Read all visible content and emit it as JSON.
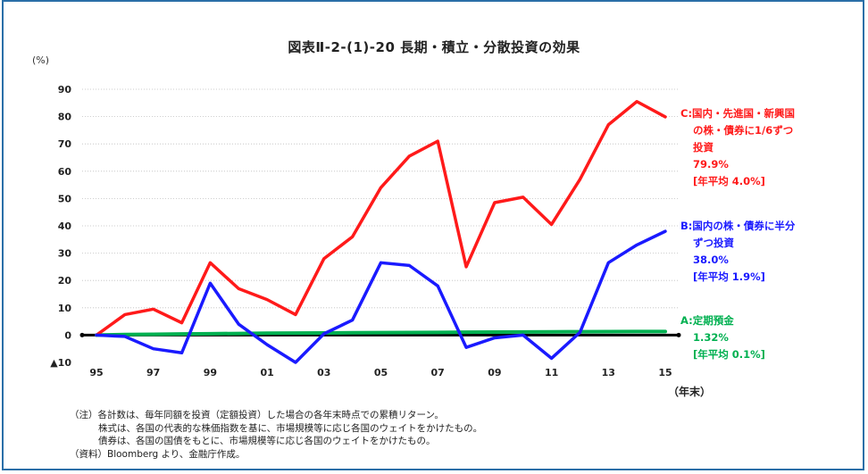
{
  "title": "図表Ⅱ-2-(1)-20  長期・積立・分散投資の効果",
  "unit_label": "(%)",
  "x_unit_label": "（年末）",
  "notes": [
    "（注）各計数は、毎年同額を投資（定額投資）した場合の各年末時点での累積リターン。",
    "株式は、各国の代表的な株価指数を基に、市場規模等に応じ各国のウェイトをかけたもの。",
    "債券は、各国の国債をもとに、市場規模等に応じ各国のウェイトをかけたもの。",
    "（資料）Bloomberg より、金融庁作成。"
  ],
  "colors": {
    "frame": "#2a6fa8",
    "red": "#ff1a1a",
    "blue": "#1a1aff",
    "green": "#00b050",
    "zero": "#000000"
  },
  "chart_data": {
    "type": "line",
    "ylim": [
      -10,
      90
    ],
    "y_ticks": [
      -10,
      0,
      10,
      20,
      30,
      40,
      50,
      60,
      70,
      80,
      90
    ],
    "y_tick_labels": [
      "▲10",
      "0",
      "10",
      "20",
      "30",
      "40",
      "50",
      "60",
      "70",
      "80",
      "90"
    ],
    "x": [
      1995,
      1996,
      1997,
      1998,
      1999,
      2000,
      2001,
      2002,
      2003,
      2004,
      2005,
      2006,
      2007,
      2008,
      2009,
      2010,
      2011,
      2012,
      2013,
      2014,
      2015
    ],
    "x_tick_positions": [
      1995,
      1997,
      1999,
      2001,
      2003,
      2005,
      2007,
      2009,
      2011,
      2013,
      2015
    ],
    "x_tick_labels": [
      "95",
      "97",
      "99",
      "01",
      "03",
      "05",
      "07",
      "09",
      "11",
      "13",
      "15"
    ],
    "grid": true,
    "series": [
      {
        "color": "#ff1a1a",
        "values": [
          0,
          7.5,
          9.5,
          4.5,
          26.5,
          17,
          13,
          7.5,
          28,
          36,
          54,
          65.5,
          71,
          25,
          48.5,
          50.5,
          40.5,
          57,
          77,
          85.5,
          79.9
        ],
        "annotation": [
          "C:国内・先進国・新興国",
          "の株・債券に1/6ずつ",
          "投資",
          "79.9%",
          "[年平均 4.0%]"
        ]
      },
      {
        "color": "#1a1aff",
        "values": [
          0,
          -0.5,
          -5,
          -6.5,
          19,
          4,
          -3.5,
          -10,
          0.5,
          5.5,
          26.5,
          25.5,
          18,
          -4.5,
          -1,
          0,
          -8.5,
          1,
          26.5,
          33,
          38.0
        ],
        "annotation": [
          "B:国内の株・債券に半分",
          "ずつ投資",
          "38.0%",
          "[年平均 1.9%]"
        ]
      },
      {
        "color": "#00b050",
        "values": [
          0,
          0.2,
          0.3,
          0.4,
          0.5,
          0.6,
          0.7,
          0.75,
          0.8,
          0.85,
          0.9,
          0.95,
          1.0,
          1.05,
          1.1,
          1.15,
          1.2,
          1.25,
          1.28,
          1.3,
          1.32
        ],
        "annotation": [
          "A:定期預金",
          "1.32%",
          "[年平均 0.1%]"
        ]
      }
    ]
  }
}
